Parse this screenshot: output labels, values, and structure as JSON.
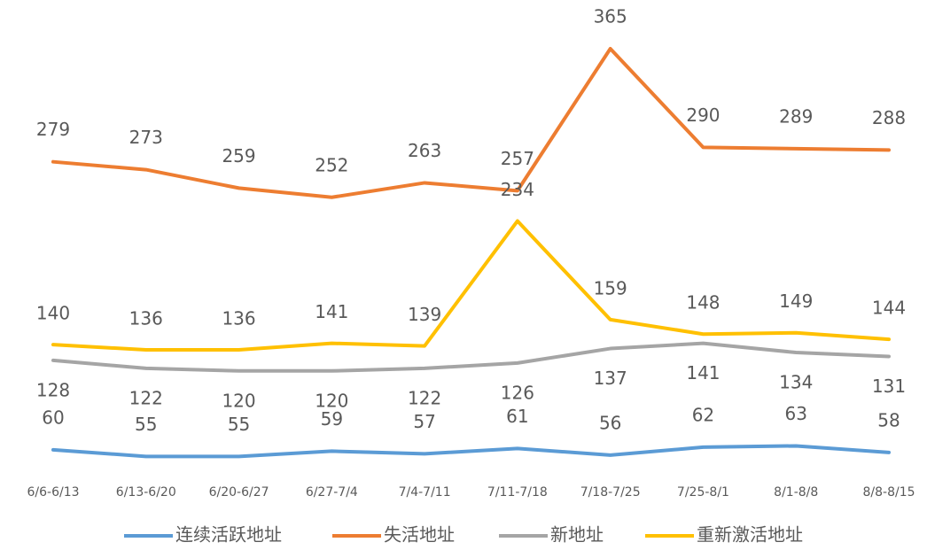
{
  "chart_data": {
    "type": "line",
    "categories": [
      "6/6-6/13",
      "6/13-6/20",
      "6/20-6/27",
      "6/27-7/4",
      "7/4-7/11",
      "7/11-7/18",
      "7/18-7/25",
      "7/25-8/1",
      "8/1-8/8",
      "8/8-8/15"
    ],
    "series": [
      {
        "name": "连续活跃地址",
        "color": "#5b9bd5",
        "values": [
          60,
          55,
          55,
          59,
          57,
          61,
          56,
          62,
          63,
          58
        ]
      },
      {
        "name": "失活地址",
        "color": "#ed7d31",
        "values": [
          279,
          273,
          259,
          252,
          263,
          257,
          365,
          290,
          289,
          288
        ]
      },
      {
        "name": "新地址",
        "color": "#a5a5a5",
        "values": [
          128,
          122,
          120,
          120,
          122,
          126,
          137,
          141,
          134,
          131
        ]
      },
      {
        "name": "重新激活地址",
        "color": "#ffc000",
        "values": [
          140,
          136,
          136,
          141,
          139,
          234,
          159,
          148,
          149,
          144
        ]
      }
    ],
    "ylim": [
      0,
      400
    ]
  }
}
